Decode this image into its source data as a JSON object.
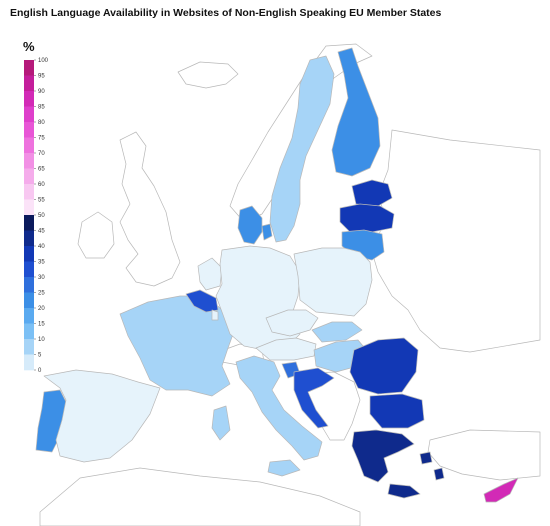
{
  "title": "English Language Availability in Websites of Non-English Speaking EU Member States",
  "legend": {
    "unit": "%",
    "ticks": [
      "100",
      "95",
      "90",
      "85",
      "80",
      "75",
      "70",
      "65",
      "60",
      "55",
      "50",
      "45",
      "40",
      "35",
      "30",
      "25",
      "20",
      "15",
      "10",
      "5",
      "0"
    ],
    "colors_top_to_bottom": [
      "#b5197a",
      "#c41e9b",
      "#d22ab6",
      "#de3fcb",
      "#e856d6",
      "#ee72de",
      "#f290e5",
      "#f5aceb",
      "#f8c8f1",
      "#fbe3f8",
      "#0b1a5c",
      "#0f2a8c",
      "#1238b5",
      "#1f4fd0",
      "#2f6fdc",
      "#3c8fe6",
      "#5aaaf0",
      "#7cc0f5",
      "#a6d4f7",
      "#d6ebfa"
    ]
  },
  "map_data": {
    "portugal": 15,
    "spain": 0,
    "france": 5,
    "belgium": 25,
    "netherlands": 0,
    "luxembourg": 0,
    "germany": 0,
    "denmark": 15,
    "sweden": 5,
    "finland": 15,
    "estonia": 35,
    "latvia": 35,
    "lithuania": 20,
    "poland": 0,
    "czechia": 0,
    "austria": 0,
    "slovakia": 5,
    "hungary": 5,
    "slovenia": 20,
    "croatia": 30,
    "italy": 5,
    "romania": 35,
    "bulgaria": 35,
    "greece": 40,
    "cyprus": 85
  }
}
